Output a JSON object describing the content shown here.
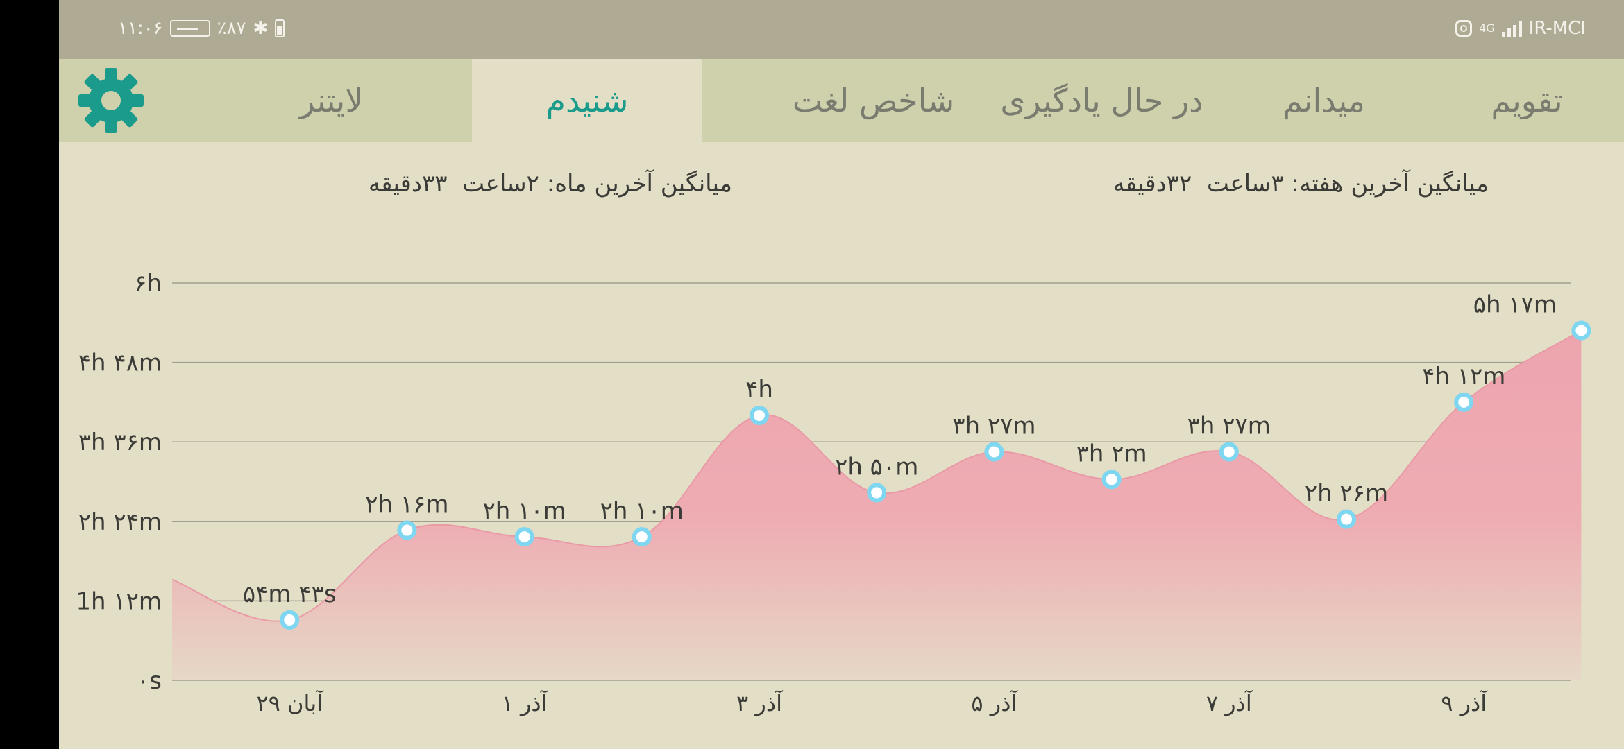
{
  "status_bar": {
    "time": "۱۱:۰۶",
    "battery": "٪۸۷",
    "carrier": "IR-MCI",
    "network": "4G"
  },
  "tabs": [
    {
      "label": "تقویم",
      "active": false
    },
    {
      "label": "میدانم",
      "active": false
    },
    {
      "label": "در حال یادگیری",
      "active": false
    },
    {
      "label": "شاخص لغت",
      "active": false
    },
    {
      "label": "شنیدم",
      "active": true
    },
    {
      "label": "لایتنر",
      "active": false
    }
  ],
  "settings_icon": "gear-icon",
  "averages": {
    "week_label": "میانگین آخرین هفته:",
    "week_hours": "۳ساعت",
    "week_minutes": "۳۲دقیقه",
    "month_label": "میانگین آخرین ماه:",
    "month_hours": "۲ساعت",
    "month_minutes": "۳۳دقیقه"
  },
  "colors": {
    "accent": "#1a9b8b",
    "fill_top": "#eda4ae",
    "fill_bottom": "#e6d8c6",
    "point": "#7fd6f0",
    "tab_bar": "#cfd1ac",
    "background": "#e3dec6"
  },
  "chart_data": {
    "type": "area",
    "title": "",
    "xlabel": "",
    "ylabel": "",
    "ylim": [
      0,
      360
    ],
    "y_unit": "minutes",
    "y_ticks": [
      {
        "value": 0,
        "label": "۰s"
      },
      {
        "value": 72,
        "label": "1h ۱۲m"
      },
      {
        "value": 144,
        "label": "۲h ۲۴m"
      },
      {
        "value": 216,
        "label": "۳h ۳۶m"
      },
      {
        "value": 288,
        "label": "۴h ۴۸m"
      },
      {
        "value": 360,
        "label": "۶h"
      }
    ],
    "x_ticks": [
      {
        "index": 1,
        "label": "۲۹ آبان"
      },
      {
        "index": 3,
        "label": "۱ آذر"
      },
      {
        "index": 5,
        "label": "۳ آذر"
      },
      {
        "index": 7,
        "label": "۵ آذر"
      },
      {
        "index": 9,
        "label": "۷ آذر"
      },
      {
        "index": 11,
        "label": "۹ آذر"
      }
    ],
    "points": [
      {
        "index": 1,
        "value": 54.7,
        "label": "۵۴m ۴۳s"
      },
      {
        "index": 2,
        "value": 136,
        "label": "۲h ۱۶m"
      },
      {
        "index": 3,
        "value": 130,
        "label": "۲h ۱۰m"
      },
      {
        "index": 4,
        "value": 130,
        "label": "۲h ۱۰m"
      },
      {
        "index": 5,
        "value": 240,
        "label": "۴h"
      },
      {
        "index": 6,
        "value": 170,
        "label": "۲h ۵۰m"
      },
      {
        "index": 7,
        "value": 207,
        "label": "۳h ۲۷m"
      },
      {
        "index": 8,
        "value": 182,
        "label": "۳h ۲m"
      },
      {
        "index": 9,
        "value": 207,
        "label": "۳h ۲۷m"
      },
      {
        "index": 10,
        "value": 146,
        "label": "۲h ۲۶m"
      },
      {
        "index": 11,
        "value": 252,
        "label": "۴h ۱۲m"
      },
      {
        "index": 12,
        "value": 317,
        "label": "۵h ۱۷m"
      }
    ],
    "grid": true,
    "legend": "none"
  }
}
